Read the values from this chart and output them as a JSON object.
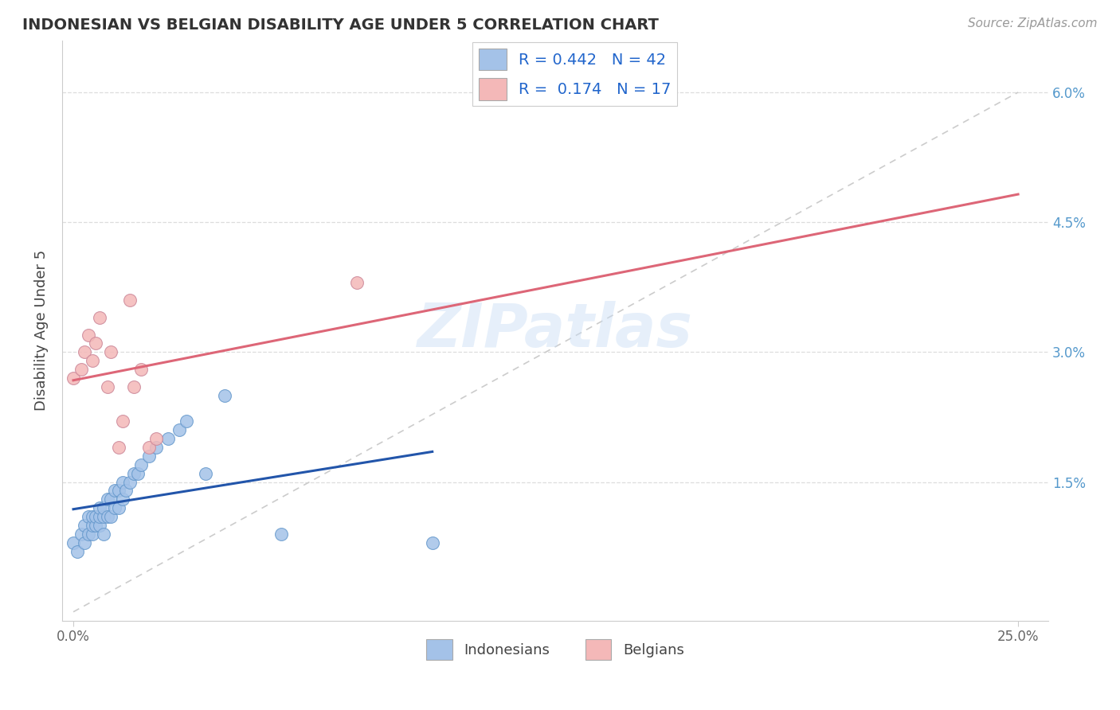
{
  "title": "INDONESIAN VS BELGIAN DISABILITY AGE UNDER 5 CORRELATION CHART",
  "source": "Source: ZipAtlas.com",
  "ylabel_label": "Disability Age Under 5",
  "xlim": [
    -0.003,
    0.258
  ],
  "ylim": [
    -0.001,
    0.066
  ],
  "xticks": [
    0.0,
    0.25
  ],
  "xtick_labels": [
    "0.0%",
    "25.0%"
  ],
  "yticks": [
    0.015,
    0.03,
    0.045,
    0.06
  ],
  "ytick_labels": [
    "1.5%",
    "3.0%",
    "4.5%",
    "6.0%"
  ],
  "watermark": "ZIPatlas",
  "blue_scatter_color": "#a4c2e8",
  "blue_scatter_edge": "#6699cc",
  "pink_scatter_color": "#f4b8b8",
  "pink_scatter_edge": "#cc8899",
  "blue_line_color": "#2255aa",
  "pink_line_color": "#dd6677",
  "diag_color": "#cccccc",
  "grid_color": "#dddddd",
  "indonesian_x": [
    0.0,
    0.001,
    0.002,
    0.003,
    0.003,
    0.004,
    0.004,
    0.005,
    0.005,
    0.005,
    0.006,
    0.006,
    0.007,
    0.007,
    0.007,
    0.008,
    0.008,
    0.008,
    0.009,
    0.009,
    0.01,
    0.01,
    0.011,
    0.011,
    0.012,
    0.012,
    0.013,
    0.013,
    0.014,
    0.015,
    0.016,
    0.017,
    0.018,
    0.02,
    0.022,
    0.025,
    0.028,
    0.03,
    0.035,
    0.04,
    0.055,
    0.095
  ],
  "indonesian_y": [
    0.008,
    0.007,
    0.009,
    0.008,
    0.01,
    0.009,
    0.011,
    0.009,
    0.01,
    0.011,
    0.01,
    0.011,
    0.01,
    0.011,
    0.012,
    0.009,
    0.011,
    0.012,
    0.011,
    0.013,
    0.011,
    0.013,
    0.012,
    0.014,
    0.012,
    0.014,
    0.013,
    0.015,
    0.014,
    0.015,
    0.016,
    0.016,
    0.017,
    0.018,
    0.019,
    0.02,
    0.021,
    0.022,
    0.016,
    0.025,
    0.009,
    0.008
  ],
  "belgian_x": [
    0.0,
    0.002,
    0.003,
    0.004,
    0.005,
    0.006,
    0.007,
    0.009,
    0.01,
    0.012,
    0.013,
    0.015,
    0.016,
    0.018,
    0.02,
    0.022,
    0.075
  ],
  "belgian_y": [
    0.027,
    0.028,
    0.03,
    0.032,
    0.029,
    0.031,
    0.034,
    0.026,
    0.03,
    0.019,
    0.022,
    0.036,
    0.026,
    0.028,
    0.019,
    0.02,
    0.038
  ]
}
